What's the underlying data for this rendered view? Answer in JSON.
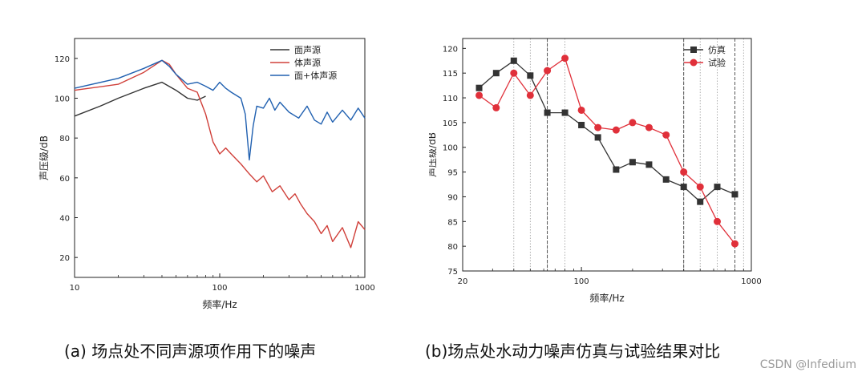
{
  "captions": {
    "a": "(a) 场点处不同声源项作用下的噪声",
    "b": "(b)场点处水动力噪声仿真与试验结果对比"
  },
  "watermark": "CSDN @Infedium",
  "chart_data": [
    {
      "type": "line",
      "xscale": "log",
      "xlim": [
        10,
        1000
      ],
      "ylim": [
        10,
        130
      ],
      "xticks": [
        10,
        100,
        1000
      ],
      "yticks": [
        20,
        40,
        60,
        80,
        100,
        120
      ],
      "xlabel": "频率/Hz",
      "ylabel": "声压级/dB",
      "legend_position": "top-right",
      "series": [
        {
          "name": "面声源",
          "color": "#333333",
          "x": [
            10,
            15,
            20,
            30,
            40,
            50,
            60,
            70,
            80
          ],
          "values": [
            91,
            96,
            100,
            105,
            108,
            104,
            100,
            99,
            101
          ]
        },
        {
          "name": "体声源",
          "color": "#d0403a",
          "x": [
            10,
            20,
            30,
            40,
            45,
            50,
            60,
            70,
            80,
            90,
            100,
            110,
            120,
            140,
            160,
            180,
            200,
            230,
            260,
            300,
            330,
            360,
            400,
            450,
            500,
            550,
            600,
            700,
            800,
            900,
            1000
          ],
          "values": [
            104,
            107,
            113,
            119,
            117,
            112,
            105,
            103,
            92,
            78,
            72,
            75,
            72,
            67,
            62,
            58,
            61,
            53,
            56,
            49,
            52,
            47,
            42,
            38,
            32,
            36,
            28,
            35,
            25,
            38,
            34
          ]
        },
        {
          "name": "面+体声源",
          "color": "#2060b0",
          "x": [
            10,
            20,
            30,
            40,
            45,
            50,
            60,
            70,
            80,
            90,
            100,
            110,
            120,
            140,
            150,
            160,
            170,
            180,
            200,
            220,
            240,
            260,
            300,
            350,
            400,
            450,
            500,
            550,
            600,
            700,
            800,
            900,
            1000
          ],
          "values": [
            105,
            110,
            115,
            119,
            116,
            112,
            107,
            108,
            106,
            104,
            108,
            105,
            103,
            100,
            92,
            69,
            86,
            96,
            95,
            100,
            94,
            98,
            93,
            90,
            96,
            89,
            87,
            93,
            88,
            94,
            89,
            95,
            90
          ]
        }
      ]
    },
    {
      "type": "line",
      "xscale": "log",
      "xlim": [
        20,
        1000
      ],
      "ylim": [
        75,
        122
      ],
      "xticks": [
        20,
        100,
        1000
      ],
      "yticks": [
        75,
        80,
        85,
        90,
        95,
        100,
        105,
        110,
        115,
        120
      ],
      "xlabel": "频率/Hz",
      "ylabel": "声压级/dB",
      "legend_position": "top-right",
      "dotted_vlines": [
        40,
        50,
        63,
        80,
        400,
        500,
        630,
        900
      ],
      "dashed_vlines": [
        63,
        400,
        800
      ],
      "series": [
        {
          "name": "仿真",
          "color": "#333333",
          "marker": "square",
          "x": [
            25,
            31.5,
            40,
            50,
            63,
            80,
            100,
            125,
            160,
            200,
            250,
            315,
            400,
            500,
            630,
            800
          ],
          "values": [
            112,
            115,
            117.5,
            114.5,
            107,
            107,
            104.5,
            102,
            95.5,
            97,
            96.5,
            93.5,
            92,
            89,
            92,
            90.5
          ]
        },
        {
          "name": "试验",
          "color": "#e0303a",
          "marker": "circle",
          "x": [
            25,
            31.5,
            40,
            50,
            63,
            80,
            100,
            125,
            160,
            200,
            250,
            315,
            400,
            500,
            630,
            800
          ],
          "values": [
            110.5,
            108,
            115,
            110.5,
            115.5,
            118,
            107.5,
            104,
            103.5,
            105,
            104,
            102.5,
            95,
            92,
            85,
            80.5
          ]
        }
      ]
    }
  ]
}
